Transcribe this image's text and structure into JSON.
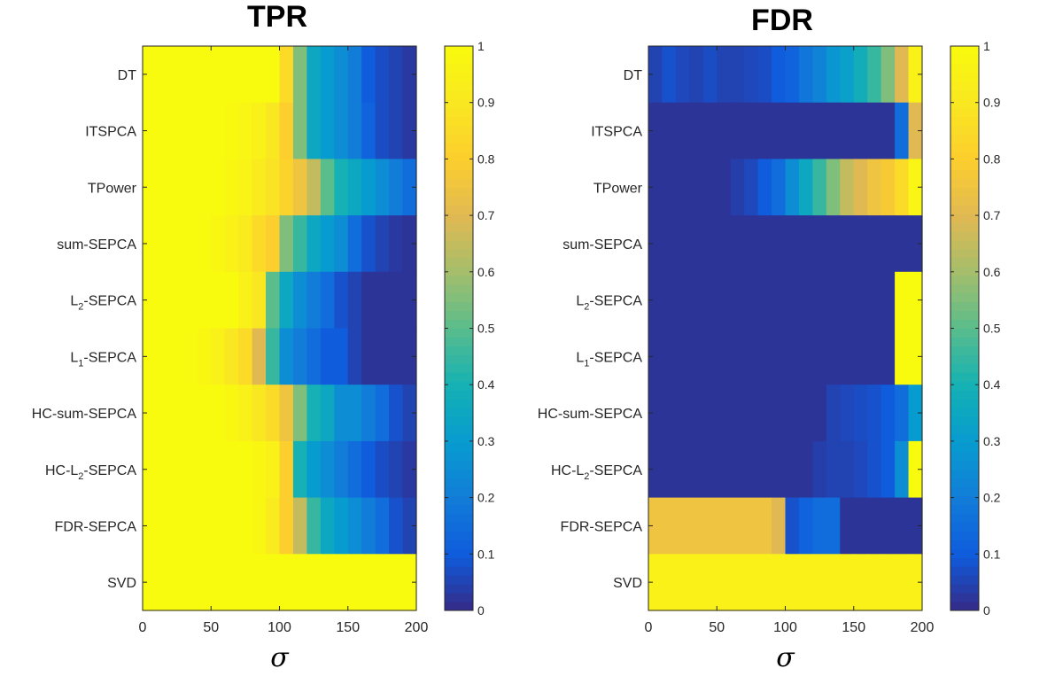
{
  "chart_data": [
    {
      "type": "heatmap",
      "title": "TPR",
      "xlabel": "σ",
      "xlim": [
        0,
        200
      ],
      "xticks": [
        0,
        50,
        100,
        150,
        200
      ],
      "x_bin_width": 10,
      "rows": [
        {
          "base": "DT",
          "sub": ""
        },
        {
          "base": "ITSPCA",
          "sub": ""
        },
        {
          "base": "TPower",
          "sub": ""
        },
        {
          "base": "sum-SEPCA",
          "sub": ""
        },
        {
          "base": "L",
          "sub": "2",
          "suffix": "-SEPCA"
        },
        {
          "base": "L",
          "sub": "1",
          "suffix": "-SEPCA"
        },
        {
          "base": "HC-sum-SEPCA",
          "sub": ""
        },
        {
          "base": "HC-L",
          "sub": "2",
          "suffix": "-SEPCA"
        },
        {
          "base": "FDR-SEPCA",
          "sub": ""
        },
        {
          "base": "SVD",
          "sub": ""
        }
      ],
      "values": [
        [
          1,
          1,
          1,
          1,
          1,
          1,
          1,
          1,
          1,
          1.0,
          0.85,
          0.55,
          0.35,
          0.3,
          0.25,
          0.2,
          0.1,
          0.07,
          0.05,
          0.03
        ],
        [
          1,
          1,
          1,
          1,
          1,
          1,
          0.99,
          0.97,
          0.95,
          0.9,
          0.8,
          0.55,
          0.35,
          0.3,
          0.25,
          0.2,
          0.12,
          0.07,
          0.05,
          0.03
        ],
        [
          1,
          1,
          1,
          1,
          1,
          1,
          0.98,
          0.96,
          0.92,
          0.88,
          0.82,
          0.75,
          0.65,
          0.5,
          0.4,
          0.35,
          0.3,
          0.25,
          0.2,
          0.15
        ],
        [
          1,
          1,
          1,
          1,
          1,
          0.98,
          0.95,
          0.92,
          0.85,
          0.8,
          0.55,
          0.45,
          0.35,
          0.3,
          0.25,
          0.15,
          0.08,
          0.05,
          0.03,
          0.02
        ],
        [
          1,
          1,
          1,
          1,
          1,
          1,
          1,
          0.95,
          0.9,
          0.5,
          0.35,
          0.25,
          0.2,
          0.15,
          0.08,
          0.05,
          0.02,
          0.02,
          0.02,
          0.02
        ],
        [
          1,
          1,
          1,
          1,
          0.98,
          0.95,
          0.9,
          0.85,
          0.7,
          0.45,
          0.25,
          0.2,
          0.15,
          0.1,
          0.1,
          0.05,
          0.02,
          0.02,
          0.02,
          0.02
        ],
        [
          1,
          1,
          1,
          1,
          1,
          1,
          0.98,
          0.95,
          0.9,
          0.85,
          0.75,
          0.55,
          0.4,
          0.35,
          0.25,
          0.25,
          0.2,
          0.15,
          0.08,
          0.05
        ],
        [
          1,
          1,
          1,
          1,
          1,
          1,
          1,
          1,
          0.98,
          0.95,
          0.8,
          0.4,
          0.3,
          0.25,
          0.2,
          0.15,
          0.1,
          0.07,
          0.05,
          0.03
        ],
        [
          1,
          1,
          1,
          1,
          1,
          1,
          1,
          1,
          0.98,
          0.92,
          0.8,
          0.65,
          0.45,
          0.35,
          0.3,
          0.25,
          0.2,
          0.15,
          0.08,
          0.05
        ],
        [
          1,
          1,
          1,
          1,
          1,
          1,
          1,
          1,
          1,
          1,
          1,
          1,
          1,
          1,
          1,
          1,
          1,
          1,
          1,
          1
        ]
      ],
      "colorbar": {
        "min": 0,
        "max": 1,
        "ticks": [
          0,
          0.1,
          0.2,
          0.3,
          0.4,
          0.5,
          0.6,
          0.7,
          0.8,
          0.9,
          1
        ],
        "colormap": "parula"
      }
    },
    {
      "type": "heatmap",
      "title": "FDR",
      "xlabel": "σ",
      "xlim": [
        0,
        200
      ],
      "xticks": [
        0,
        50,
        100,
        150,
        200
      ],
      "x_bin_width": 10,
      "rows": [
        {
          "base": "DT",
          "sub": ""
        },
        {
          "base": "ITSPCA",
          "sub": ""
        },
        {
          "base": "TPower",
          "sub": ""
        },
        {
          "base": "sum-SEPCA",
          "sub": ""
        },
        {
          "base": "L",
          "sub": "2",
          "suffix": "-SEPCA"
        },
        {
          "base": "L",
          "sub": "1",
          "suffix": "-SEPCA"
        },
        {
          "base": "HC-sum-SEPCA",
          "sub": ""
        },
        {
          "base": "HC-L",
          "sub": "2",
          "suffix": "-SEPCA"
        },
        {
          "base": "FDR-SEPCA",
          "sub": ""
        },
        {
          "base": "SVD",
          "sub": ""
        }
      ],
      "values": [
        [
          0.05,
          0.08,
          0.06,
          0.05,
          0.07,
          0.05,
          0.05,
          0.06,
          0.07,
          0.1,
          0.12,
          0.18,
          0.22,
          0.28,
          0.32,
          0.38,
          0.45,
          0.55,
          0.7,
          0.95
        ],
        [
          0.02,
          0.02,
          0.02,
          0.02,
          0.02,
          0.02,
          0.02,
          0.02,
          0.02,
          0.02,
          0.02,
          0.02,
          0.02,
          0.02,
          0.02,
          0.02,
          0.02,
          0.02,
          0.15,
          0.7
        ],
        [
          0.02,
          0.02,
          0.02,
          0.02,
          0.02,
          0.02,
          0.04,
          0.06,
          0.1,
          0.15,
          0.25,
          0.35,
          0.45,
          0.55,
          0.65,
          0.7,
          0.75,
          0.78,
          0.85,
          0.97
        ],
        [
          0.02,
          0.02,
          0.02,
          0.02,
          0.02,
          0.02,
          0.02,
          0.02,
          0.02,
          0.02,
          0.02,
          0.02,
          0.02,
          0.02,
          0.02,
          0.02,
          0.02,
          0.02,
          0.02,
          0.02
        ],
        [
          0.02,
          0.02,
          0.02,
          0.02,
          0.02,
          0.02,
          0.02,
          0.02,
          0.02,
          0.02,
          0.02,
          0.02,
          0.02,
          0.02,
          0.02,
          0.02,
          0.02,
          0.02,
          1,
          1
        ],
        [
          0.02,
          0.02,
          0.02,
          0.02,
          0.02,
          0.02,
          0.02,
          0.02,
          0.02,
          0.02,
          0.02,
          0.02,
          0.02,
          0.02,
          0.02,
          0.02,
          0.02,
          0.02,
          1,
          1
        ],
        [
          0.02,
          0.02,
          0.02,
          0.02,
          0.02,
          0.02,
          0.02,
          0.02,
          0.02,
          0.02,
          0.02,
          0.02,
          0.02,
          0.05,
          0.06,
          0.07,
          0.08,
          0.1,
          0.15,
          0.3
        ],
        [
          0.02,
          0.02,
          0.02,
          0.02,
          0.02,
          0.02,
          0.02,
          0.02,
          0.02,
          0.02,
          0.02,
          0.02,
          0.04,
          0.05,
          0.05,
          0.06,
          0.08,
          0.1,
          0.25,
          1
        ],
        [
          0.75,
          0.75,
          0.75,
          0.75,
          0.75,
          0.75,
          0.75,
          0.75,
          0.75,
          0.7,
          0.08,
          0.12,
          0.15,
          0.15,
          0.02,
          0.02,
          0.02,
          0.02,
          0.02,
          0.02
        ],
        [
          0.95,
          0.95,
          0.95,
          0.95,
          0.95,
          0.95,
          0.95,
          0.95,
          0.95,
          0.95,
          0.95,
          0.95,
          0.95,
          0.95,
          0.95,
          0.95,
          0.95,
          0.95,
          0.95,
          0.95
        ]
      ],
      "colorbar": {
        "min": 0,
        "max": 1,
        "ticks": [
          0,
          0.1,
          0.2,
          0.3,
          0.4,
          0.5,
          0.6,
          0.7,
          0.8,
          0.9,
          1
        ],
        "colormap": "parula"
      }
    }
  ]
}
